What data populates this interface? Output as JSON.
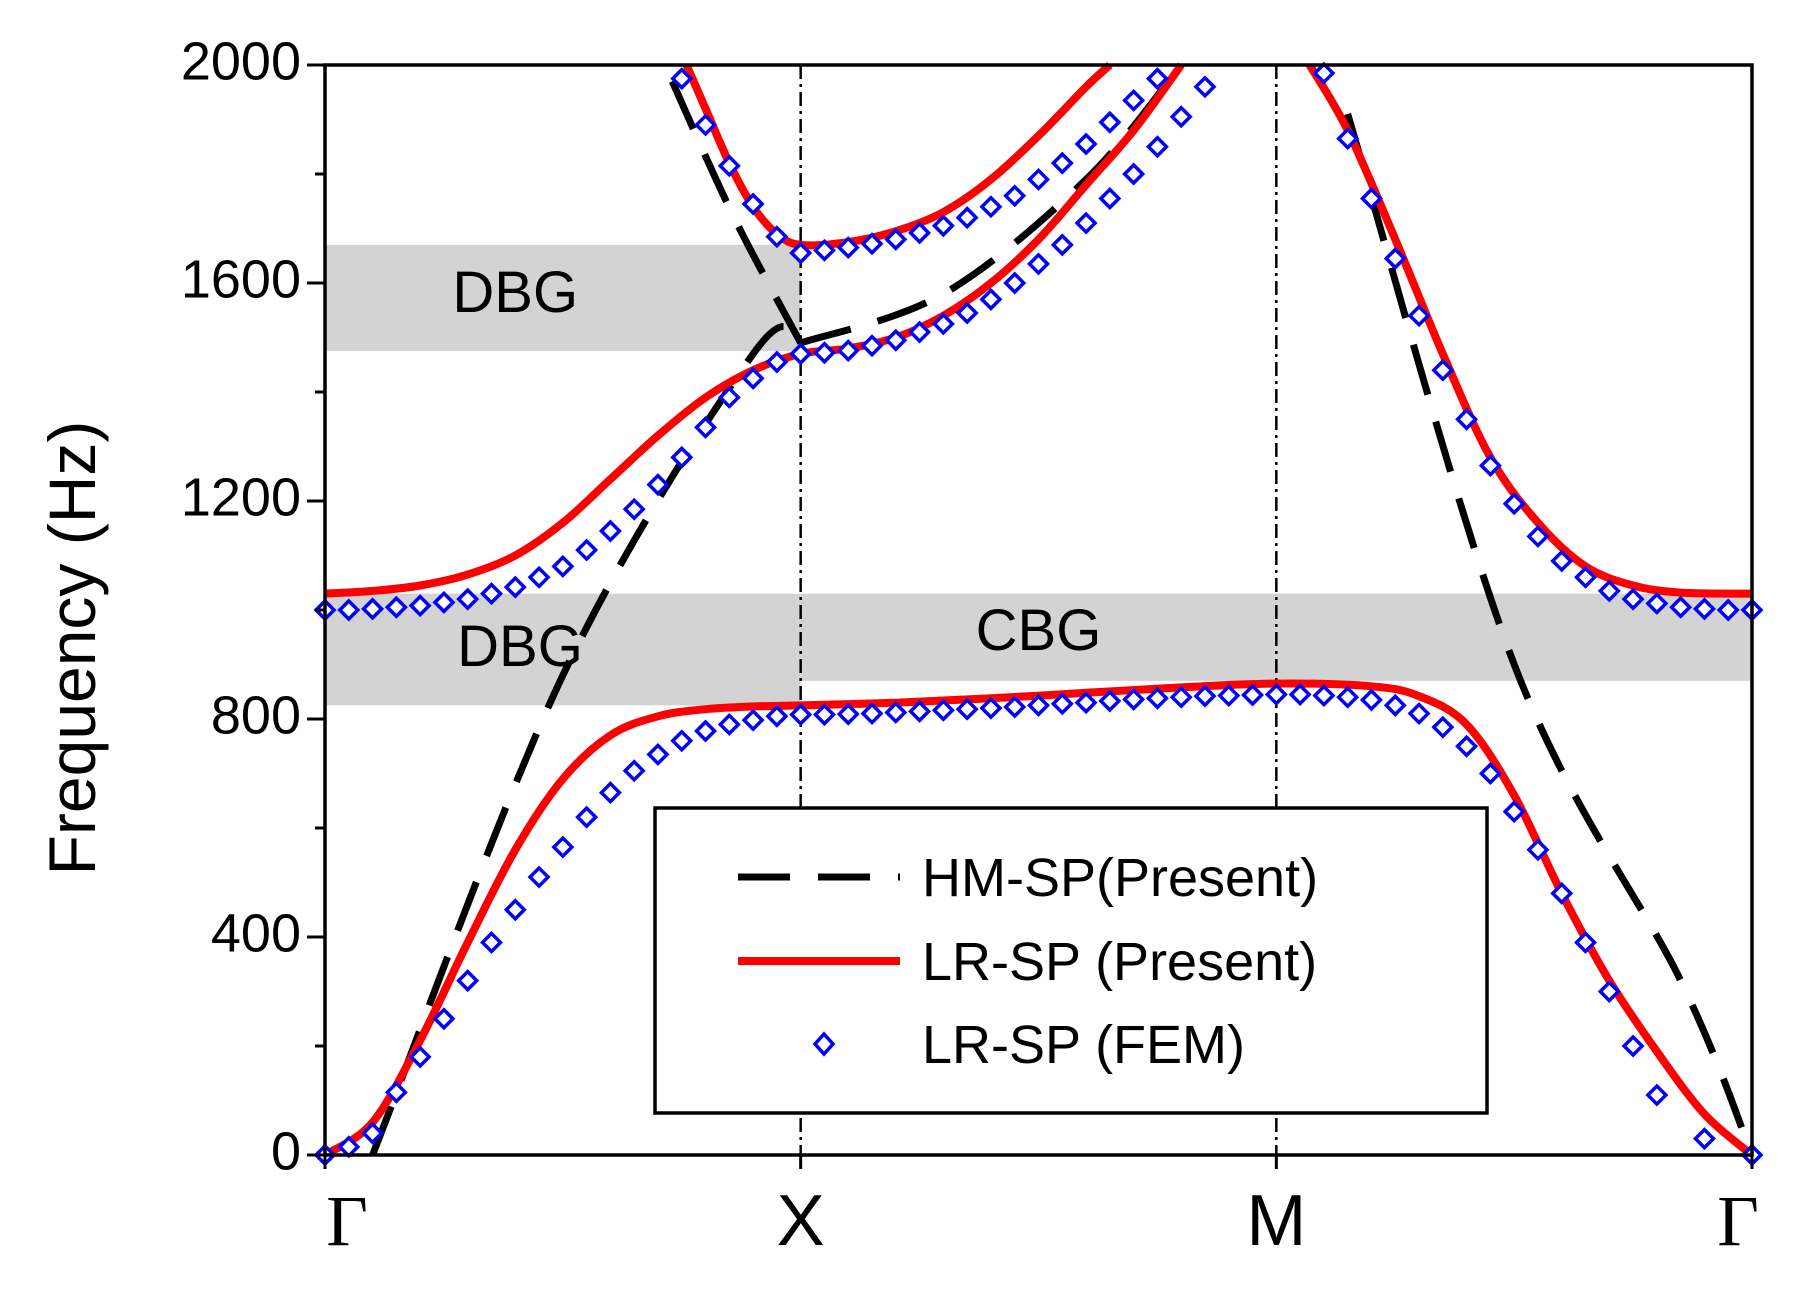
{
  "chart_data": {
    "type": "line",
    "title": "",
    "xlabel": "",
    "ylabel": "Frequency (Hz)",
    "ylim": [
      0,
      2000
    ],
    "yticks": [
      0,
      400,
      800,
      1200,
      1600,
      2000
    ],
    "xlim": [
      0,
      3
    ],
    "x_tick_positions": [
      0,
      1,
      2,
      3
    ],
    "x_tick_labels": [
      "Γ",
      "X",
      "M",
      "Γ"
    ],
    "symmetry_lines_at": [
      1,
      2
    ],
    "band_regions": [
      {
        "label": "DBG",
        "x_from": 0,
        "x_to": 1,
        "y_from": 1475,
        "y_to": 1670,
        "label_x": 0.4,
        "label_y": 1575
      },
      {
        "label": "DBG",
        "x_from": 0,
        "x_to": 1,
        "y_from": 825,
        "y_to": 1030,
        "label_x": 0.41,
        "label_y": 925
      },
      {
        "label": "CBG",
        "x_from": 1,
        "x_to": 3,
        "y_from": 870,
        "y_to": 1030,
        "label_x": 1.5,
        "label_y": 955
      }
    ],
    "legend": {
      "placement": "bottom-center",
      "entries": [
        {
          "label": "HM-SP(Present)",
          "style": "dashed",
          "color": "#000000"
        },
        {
          "label": "LR-SP (Present)",
          "style": "solid",
          "color": "#ff0000"
        },
        {
          "label": "LR-SP (FEM)",
          "style": "diamond",
          "color": "#0000ff"
        }
      ]
    },
    "series": [
      {
        "name": "HM-SP(Present) branch 1",
        "style": "dashed",
        "color": "#000000",
        "points": [
          [
            0.1,
            0
          ],
          [
            0.5,
            880
          ],
          [
            0.9,
            1470
          ],
          [
            1.0,
            1490
          ]
        ]
      },
      {
        "name": "HM-SP(Present) branch 2",
        "style": "dashed",
        "color": "#000000",
        "points": [
          [
            0.73,
            1970
          ],
          [
            0.86,
            1720
          ],
          [
            1.0,
            1490
          ]
        ]
      },
      {
        "name": "HM-SP(Present) branch 3",
        "style": "dashed",
        "color": "#000000",
        "points": [
          [
            1.0,
            1490
          ],
          [
            1.3,
            1580
          ],
          [
            1.6,
            1790
          ],
          [
            1.8,
            2000
          ]
        ]
      },
      {
        "name": "HM-SP(Present) branch 4",
        "style": "dashed",
        "color": "#000000",
        "points": [
          [
            2.15,
            1910
          ],
          [
            2.5,
            900
          ],
          [
            2.85,
            320
          ],
          [
            3.0,
            0
          ]
        ]
      },
      {
        "name": "LR-SP (Present) branch 1",
        "style": "solid",
        "color": "#ff0000",
        "points": [
          [
            0.0,
            0
          ],
          [
            0.1,
            60
          ],
          [
            0.2,
            210
          ],
          [
            0.3,
            390
          ],
          [
            0.4,
            560
          ],
          [
            0.5,
            690
          ],
          [
            0.6,
            770
          ],
          [
            0.7,
            805
          ],
          [
            0.8,
            818
          ],
          [
            0.9,
            823
          ],
          [
            1.0,
            825
          ],
          [
            1.2,
            830
          ],
          [
            1.4,
            838
          ],
          [
            1.6,
            848
          ],
          [
            1.8,
            858
          ],
          [
            2.0,
            865
          ],
          [
            2.2,
            860
          ],
          [
            2.3,
            842
          ],
          [
            2.4,
            790
          ],
          [
            2.5,
            660
          ],
          [
            2.6,
            480
          ],
          [
            2.7,
            320
          ],
          [
            2.8,
            190
          ],
          [
            2.9,
            75
          ],
          [
            3.0,
            0
          ]
        ]
      },
      {
        "name": "LR-SP (Present) branch 2",
        "style": "solid",
        "color": "#ff0000",
        "points": [
          [
            0.0,
            1030
          ],
          [
            0.1,
            1035
          ],
          [
            0.2,
            1045
          ],
          [
            0.3,
            1065
          ],
          [
            0.4,
            1100
          ],
          [
            0.5,
            1160
          ],
          [
            0.6,
            1240
          ],
          [
            0.7,
            1320
          ],
          [
            0.8,
            1390
          ],
          [
            0.9,
            1440
          ],
          [
            1.0,
            1470
          ],
          [
            1.1,
            1480
          ],
          [
            1.2,
            1500
          ],
          [
            1.3,
            1540
          ],
          [
            1.4,
            1600
          ],
          [
            1.5,
            1680
          ],
          [
            1.6,
            1780
          ],
          [
            1.7,
            1880
          ],
          [
            1.8,
            2000
          ]
        ]
      },
      {
        "name": "LR-SP (Present) branch 3",
        "style": "solid",
        "color": "#ff0000",
        "points": [
          [
            0.76,
            2000
          ],
          [
            0.8,
            1920
          ],
          [
            0.85,
            1820
          ],
          [
            0.9,
            1740
          ],
          [
            0.95,
            1690
          ],
          [
            1.0,
            1670
          ],
          [
            1.1,
            1675
          ],
          [
            1.2,
            1695
          ],
          [
            1.3,
            1730
          ],
          [
            1.4,
            1790
          ],
          [
            1.5,
            1870
          ],
          [
            1.6,
            1960
          ],
          [
            1.65,
            2000
          ]
        ]
      },
      {
        "name": "LR-SP (Present) branch 4",
        "style": "solid",
        "color": "#ff0000",
        "points": [
          [
            2.07,
            2000
          ],
          [
            2.15,
            1880
          ],
          [
            2.25,
            1680
          ],
          [
            2.35,
            1470
          ],
          [
            2.45,
            1280
          ],
          [
            2.55,
            1160
          ],
          [
            2.65,
            1080
          ],
          [
            2.75,
            1045
          ],
          [
            2.85,
            1032
          ],
          [
            3.0,
            1030
          ]
        ]
      }
    ],
    "fem_points": {
      "name": "LR-SP (FEM)",
      "marker": "diamond",
      "color": "#0000ff",
      "lower": [
        [
          0.0,
          0
        ],
        [
          0.05,
          15
        ],
        [
          0.1,
          40
        ],
        [
          0.15,
          115
        ],
        [
          0.2,
          180
        ],
        [
          0.25,
          250
        ],
        [
          0.3,
          320
        ],
        [
          0.35,
          390
        ],
        [
          0.4,
          450
        ],
        [
          0.45,
          510
        ],
        [
          0.5,
          565
        ],
        [
          0.55,
          620
        ],
        [
          0.6,
          665
        ],
        [
          0.65,
          705
        ],
        [
          0.7,
          735
        ],
        [
          0.75,
          760
        ],
        [
          0.8,
          778
        ],
        [
          0.85,
          790
        ],
        [
          0.9,
          798
        ],
        [
          0.95,
          805
        ],
        [
          1.0,
          808
        ],
        [
          1.05,
          808
        ],
        [
          1.1,
          809
        ],
        [
          1.15,
          810
        ],
        [
          1.2,
          812
        ],
        [
          1.25,
          814
        ],
        [
          1.3,
          816
        ],
        [
          1.35,
          818
        ],
        [
          1.4,
          820
        ],
        [
          1.45,
          822
        ],
        [
          1.5,
          825
        ],
        [
          1.55,
          828
        ],
        [
          1.6,
          830
        ],
        [
          1.65,
          833
        ],
        [
          1.7,
          836
        ],
        [
          1.75,
          838
        ],
        [
          1.8,
          840
        ],
        [
          1.85,
          842
        ],
        [
          1.9,
          843
        ],
        [
          1.95,
          844
        ],
        [
          2.0,
          845
        ],
        [
          2.05,
          845
        ],
        [
          2.1,
          843
        ],
        [
          2.15,
          840
        ],
        [
          2.2,
          835
        ],
        [
          2.25,
          825
        ],
        [
          2.3,
          810
        ],
        [
          2.35,
          785
        ],
        [
          2.4,
          750
        ],
        [
          2.45,
          700
        ],
        [
          2.5,
          630
        ],
        [
          2.55,
          560
        ],
        [
          2.6,
          480
        ],
        [
          2.65,
          390
        ],
        [
          2.7,
          300
        ],
        [
          2.75,
          200
        ],
        [
          2.8,
          110
        ],
        [
          2.9,
          30
        ],
        [
          3.0,
          0
        ]
      ],
      "middle": [
        [
          0.0,
          1000
        ],
        [
          0.05,
          1000
        ],
        [
          0.1,
          1002
        ],
        [
          0.15,
          1005
        ],
        [
          0.2,
          1008
        ],
        [
          0.25,
          1014
        ],
        [
          0.3,
          1020
        ],
        [
          0.35,
          1030
        ],
        [
          0.4,
          1042
        ],
        [
          0.45,
          1060
        ],
        [
          0.5,
          1080
        ],
        [
          0.55,
          1110
        ],
        [
          0.6,
          1145
        ],
        [
          0.65,
          1185
        ],
        [
          0.7,
          1230
        ],
        [
          0.75,
          1280
        ],
        [
          0.8,
          1335
        ],
        [
          0.85,
          1390
        ],
        [
          0.9,
          1425
        ],
        [
          0.95,
          1455
        ],
        [
          1.0,
          1470
        ],
        [
          1.05,
          1472
        ],
        [
          1.1,
          1476
        ],
        [
          1.15,
          1485
        ],
        [
          1.2,
          1495
        ],
        [
          1.25,
          1510
        ],
        [
          1.3,
          1525
        ],
        [
          1.35,
          1545
        ],
        [
          1.4,
          1570
        ],
        [
          1.45,
          1600
        ],
        [
          1.5,
          1635
        ],
        [
          1.55,
          1670
        ],
        [
          1.6,
          1710
        ],
        [
          1.65,
          1755
        ],
        [
          1.7,
          1800
        ],
        [
          1.75,
          1850
        ],
        [
          1.8,
          1905
        ],
        [
          1.85,
          1960
        ]
      ],
      "upper": [
        [
          0.75,
          1975
        ],
        [
          0.8,
          1890
        ],
        [
          0.85,
          1815
        ],
        [
          0.9,
          1745
        ],
        [
          0.95,
          1685
        ],
        [
          1.0,
          1655
        ],
        [
          1.05,
          1660
        ],
        [
          1.1,
          1665
        ],
        [
          1.15,
          1672
        ],
        [
          1.2,
          1680
        ],
        [
          1.25,
          1692
        ],
        [
          1.3,
          1705
        ],
        [
          1.35,
          1720
        ],
        [
          1.4,
          1740
        ],
        [
          1.45,
          1760
        ],
        [
          1.5,
          1790
        ],
        [
          1.55,
          1820
        ],
        [
          1.6,
          1855
        ],
        [
          1.65,
          1895
        ],
        [
          1.7,
          1935
        ],
        [
          1.75,
          1975
        ]
      ],
      "right": [
        [
          2.1,
          1985
        ],
        [
          2.15,
          1865
        ],
        [
          2.2,
          1755
        ],
        [
          2.25,
          1645
        ],
        [
          2.3,
          1540
        ],
        [
          2.35,
          1440
        ],
        [
          2.4,
          1350
        ],
        [
          2.45,
          1265
        ],
        [
          2.5,
          1195
        ],
        [
          2.55,
          1135
        ],
        [
          2.6,
          1090
        ],
        [
          2.65,
          1060
        ],
        [
          2.7,
          1035
        ],
        [
          2.75,
          1020
        ],
        [
          2.8,
          1012
        ],
        [
          2.85,
          1005
        ],
        [
          2.9,
          1002
        ],
        [
          2.95,
          1000
        ],
        [
          3.0,
          1000
        ]
      ]
    }
  }
}
